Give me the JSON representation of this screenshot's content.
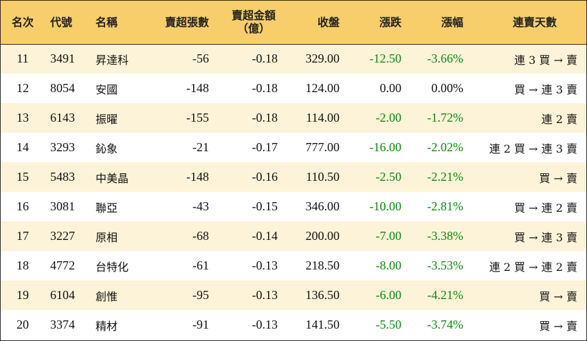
{
  "table": {
    "headers": {
      "rank": "名次",
      "code": "代號",
      "name": "名稱",
      "sell_lots": "賣超張數",
      "sell_amount_line1": "賣超金額",
      "sell_amount_line2": "（億）",
      "close": "收盤",
      "change": "漲跌",
      "change_pct": "漲幅",
      "streak": "連賣天數"
    },
    "colors": {
      "header_bg": "#f8ce6a",
      "stripe_bg": "#fdf3d8",
      "down": "#0a8a0a",
      "flat": "#111111"
    },
    "rows": [
      {
        "rank": "11",
        "code": "3491",
        "name": "昇達科",
        "sell_lots": "-56",
        "sell_amount": "-0.18",
        "close": "329.00",
        "change": "-12.50",
        "change_pct": "-3.66%",
        "streak": "連 3 買 → 賣",
        "trend": "down"
      },
      {
        "rank": "12",
        "code": "8054",
        "name": "安國",
        "sell_lots": "-148",
        "sell_amount": "-0.18",
        "close": "124.00",
        "change": "0.00",
        "change_pct": "0.00%",
        "streak": "買 → 連 3 賣",
        "trend": "flat"
      },
      {
        "rank": "13",
        "code": "6143",
        "name": "振曜",
        "sell_lots": "-155",
        "sell_amount": "-0.18",
        "close": "114.00",
        "change": "-2.00",
        "change_pct": "-1.72%",
        "streak": "連 2 賣",
        "trend": "down"
      },
      {
        "rank": "14",
        "code": "3293",
        "name": "鈊象",
        "sell_lots": "-21",
        "sell_amount": "-0.17",
        "close": "777.00",
        "change": "-16.00",
        "change_pct": "-2.02%",
        "streak": "連 2 買 → 連 3 賣",
        "trend": "down"
      },
      {
        "rank": "15",
        "code": "5483",
        "name": "中美晶",
        "sell_lots": "-148",
        "sell_amount": "-0.16",
        "close": "110.50",
        "change": "-2.50",
        "change_pct": "-2.21%",
        "streak": "買 → 賣",
        "trend": "down"
      },
      {
        "rank": "16",
        "code": "3081",
        "name": "聯亞",
        "sell_lots": "-43",
        "sell_amount": "-0.15",
        "close": "346.00",
        "change": "-10.00",
        "change_pct": "-2.81%",
        "streak": "買 → 連 2 賣",
        "trend": "down"
      },
      {
        "rank": "17",
        "code": "3227",
        "name": "原相",
        "sell_lots": "-68",
        "sell_amount": "-0.14",
        "close": "200.00",
        "change": "-7.00",
        "change_pct": "-3.38%",
        "streak": "買 → 連 3 賣",
        "trend": "down"
      },
      {
        "rank": "18",
        "code": "4772",
        "name": "台特化",
        "sell_lots": "-61",
        "sell_amount": "-0.13",
        "close": "218.50",
        "change": "-8.00",
        "change_pct": "-3.53%",
        "streak": "連 2 買 → 連 2 賣",
        "trend": "down"
      },
      {
        "rank": "19",
        "code": "6104",
        "name": "創惟",
        "sell_lots": "-95",
        "sell_amount": "-0.13",
        "close": "136.50",
        "change": "-6.00",
        "change_pct": "-4.21%",
        "streak": "買 → 賣",
        "trend": "down"
      },
      {
        "rank": "20",
        "code": "3374",
        "name": "精材",
        "sell_lots": "-91",
        "sell_amount": "-0.13",
        "close": "141.50",
        "change": "-5.50",
        "change_pct": "-3.74%",
        "streak": "買 → 賣",
        "trend": "down"
      }
    ]
  }
}
